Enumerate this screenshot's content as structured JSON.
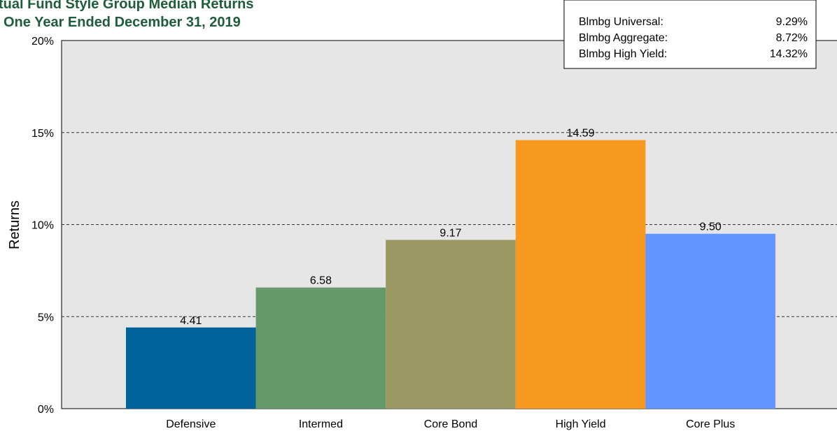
{
  "chart_data": {
    "type": "bar",
    "title": "Mutual Fund Style Group Median Returns",
    "title_visible": "tual Fund Style Group Median Returns",
    "subtitle": "One Year Ended December 31, 2019",
    "ylabel": "Returns",
    "xlabel": "",
    "ylim": [
      0,
      20
    ],
    "yticks": [
      0,
      5,
      10,
      15,
      20
    ],
    "ytick_labels": [
      "0%",
      "5%",
      "10%",
      "15%",
      "20%"
    ],
    "grid": "horizontal-dashed",
    "categories": [
      "Defensive",
      "Intermed",
      "Core Bond",
      "High Yield",
      "Core Plus"
    ],
    "values": [
      4.41,
      6.58,
      9.17,
      14.59,
      9.5
    ],
    "value_labels": [
      "4.41",
      "6.58",
      "9.17",
      "14.59",
      "9.50"
    ],
    "colors": [
      "#00629b",
      "#66996a",
      "#9b9a65",
      "#f7981f",
      "#6495ff"
    ],
    "legend_placement": "top-right",
    "benchmarks": [
      {
        "name": "Blmbg Universal:",
        "value": "9.29%"
      },
      {
        "name": "Blmbg Aggregate:",
        "value": "8.72%"
      },
      {
        "name": "Blmbg High Yield:",
        "value": "14.32%"
      }
    ]
  }
}
